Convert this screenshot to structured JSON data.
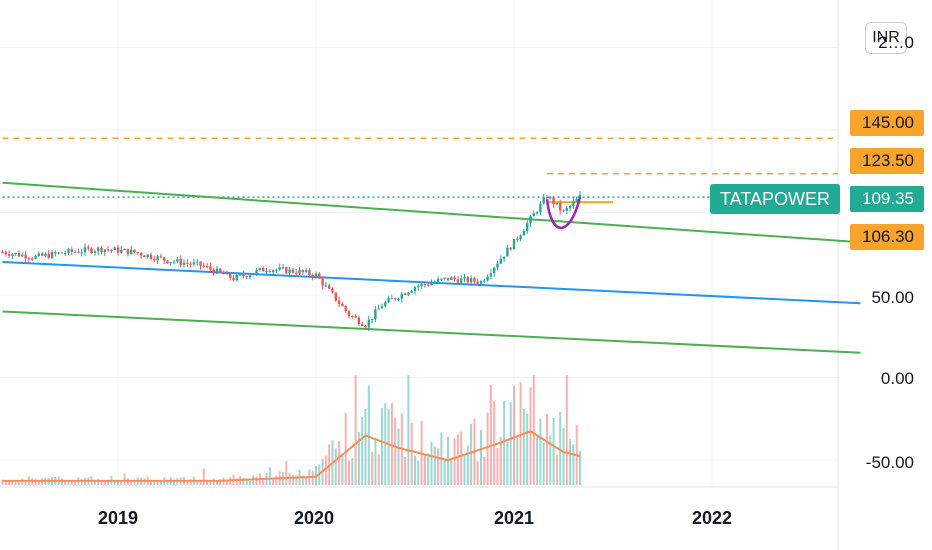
{
  "header": {
    "currency_button": "INR"
  },
  "symbol": {
    "name": "TATAPOWER",
    "last_price": "109.35"
  },
  "price_tags": [
    {
      "label": "145.00",
      "kind": "alert",
      "value": 145
    },
    {
      "label": "123.50",
      "kind": "alert",
      "value": 123.5
    },
    {
      "label": "106.30",
      "kind": "alert",
      "value": 106.3
    }
  ],
  "y_axis_labels": [
    "2…0",
    "50.00",
    "0.00",
    "-50.00"
  ],
  "x_axis_labels": [
    "2019",
    "2020",
    "2021",
    "2022"
  ],
  "colors": {
    "up": "#26a69a",
    "down": "#ef5350",
    "volume_ma": "#f68e56",
    "channel_mid": "#2196f3",
    "channel_outer": "#4caf50",
    "alert_line": "#f8a42c",
    "pattern_cup": "#9c27b0",
    "grid": "#f0f3fa"
  },
  "chart_data": {
    "type": "candlestick",
    "symbol": "TATAPOWER",
    "currency": "INR",
    "y_scale": "price",
    "ylim": [
      -65,
      215
    ],
    "x_range": [
      "2018-06",
      "2022-10"
    ],
    "series_close": {
      "dates": [
        "2018-06",
        "2018-08",
        "2018-10",
        "2018-12",
        "2019-02",
        "2019-04",
        "2019-06",
        "2019-08",
        "2019-10",
        "2019-12",
        "2020-01",
        "2020-03",
        "2020-04",
        "2020-05",
        "2020-07",
        "2020-09",
        "2020-11",
        "2020-12",
        "2021-01",
        "2021-02",
        "2021-03",
        "2021-04",
        "2021-05"
      ],
      "values": [
        76,
        73,
        76,
        78,
        76,
        71,
        68,
        60,
        66,
        64,
        62,
        38,
        32,
        44,
        55,
        60,
        58,
        70,
        82,
        96,
        110,
        100,
        109.35
      ]
    },
    "channel": {
      "middle": {
        "start": [
          "2018-06",
          70
        ],
        "end": [
          "2022-10",
          45
        ]
      },
      "upper": {
        "start": [
          "2018-06",
          118
        ],
        "end": [
          "2022-10",
          82
        ]
      },
      "lower": {
        "start": [
          "2018-06",
          40
        ],
        "end": [
          "2022-10",
          15
        ]
      }
    },
    "horizontal_levels": [
      {
        "value": 145,
        "style": "dashed",
        "from": "2018-06"
      },
      {
        "value": 123.5,
        "style": "dashed",
        "from": "2021-03"
      },
      {
        "value": 109.35,
        "style": "dotted",
        "from": "2018-06"
      },
      {
        "value": 106.3,
        "style": "solid",
        "from": "2021-03",
        "to": "2021-07"
      }
    ],
    "cup_pattern": {
      "start": "2021-03",
      "end": "2021-05"
    },
    "volume": {
      "dates": [
        "2018-06",
        "2019-01",
        "2019-07",
        "2020-01",
        "2020-04",
        "2020-06",
        "2020-09",
        "2020-12",
        "2021-02",
        "2021-04",
        "2021-05"
      ],
      "ma_relative": [
        0.05,
        0.05,
        0.05,
        0.1,
        0.6,
        0.45,
        0.3,
        0.5,
        0.65,
        0.4,
        0.35
      ]
    }
  }
}
